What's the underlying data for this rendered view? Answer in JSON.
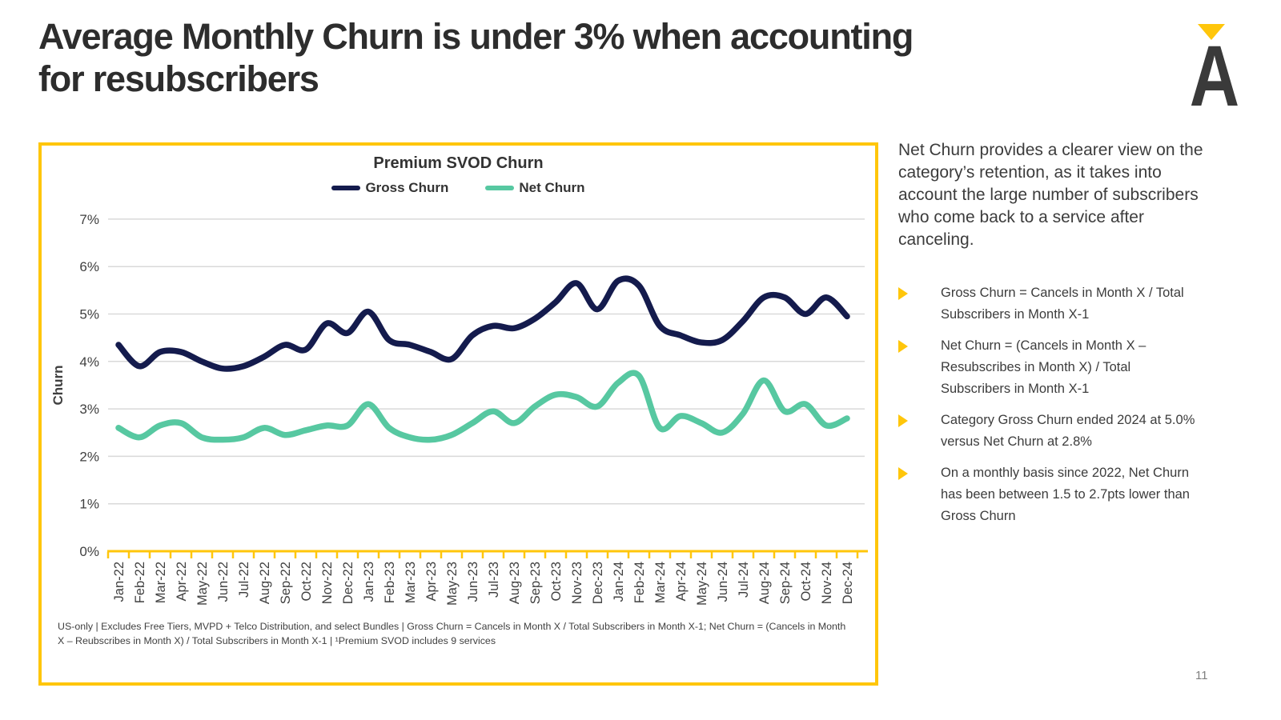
{
  "slide": {
    "title": "Average Monthly Churn is under 3% when accounting\nfor resubscribers",
    "page_number": "11",
    "logo": {
      "letter": "A",
      "triangle_icon": "yellow-down-triangle"
    }
  },
  "colors": {
    "brand_yellow": "#FFC60B",
    "gross_churn_navy": "#141B4D",
    "net_churn_teal": "#57C8A1",
    "gridline": "#D9D9D9",
    "title_text": "#2D2D2D",
    "body_text": "#3C3C3C",
    "page_number_gray": "#7F7F7F"
  },
  "chart_data": {
    "type": "line",
    "title": "Premium SVOD Churn",
    "ylabel": "Churn",
    "ylim": [
      0,
      7
    ],
    "yticks": [
      "0%",
      "1%",
      "2%",
      "3%",
      "4%",
      "5%",
      "6%",
      "7%"
    ],
    "grid": true,
    "legend_position": "top-center",
    "categories": [
      "Jan-22",
      "Feb-22",
      "Mar-22",
      "Apr-22",
      "May-22",
      "Jun-22",
      "Jul-22",
      "Aug-22",
      "Sep-22",
      "Oct-22",
      "Nov-22",
      "Dec-22",
      "Jan-23",
      "Feb-23",
      "Mar-23",
      "Apr-23",
      "May-23",
      "Jun-23",
      "Jul-23",
      "Aug-23",
      "Sep-23",
      "Oct-23",
      "Nov-23",
      "Dec-23",
      "Jan-24",
      "Feb-24",
      "Mar-24",
      "Apr-24",
      "May-24",
      "Jun-24",
      "Jul-24",
      "Aug-24",
      "Sep-24",
      "Oct-24",
      "Nov-24",
      "Dec-24"
    ],
    "series": [
      {
        "name": "Gross Churn",
        "color": "#141B4D",
        "values": [
          4.35,
          3.9,
          4.2,
          4.2,
          4.0,
          3.85,
          3.9,
          4.1,
          4.35,
          4.25,
          4.8,
          4.6,
          5.05,
          4.45,
          4.35,
          4.2,
          4.05,
          4.55,
          4.75,
          4.7,
          4.9,
          5.25,
          5.65,
          5.1,
          5.7,
          5.6,
          4.75,
          4.55,
          4.4,
          4.45,
          4.85,
          5.35,
          5.35,
          5.0,
          5.35,
          4.95
        ]
      },
      {
        "name": "Net Churn",
        "color": "#57C8A1",
        "values": [
          2.6,
          2.4,
          2.65,
          2.7,
          2.4,
          2.35,
          2.4,
          2.6,
          2.45,
          2.55,
          2.65,
          2.65,
          3.1,
          2.6,
          2.4,
          2.35,
          2.45,
          2.7,
          2.95,
          2.7,
          3.05,
          3.3,
          3.25,
          3.05,
          3.55,
          3.7,
          2.6,
          2.85,
          2.7,
          2.5,
          2.9,
          3.6,
          2.95,
          3.1,
          2.65,
          2.8
        ]
      }
    ],
    "axis_color": "#FFC60B",
    "footnote": "US-only | Excludes Free Tiers, MVPD + Telco Distribution, and select Bundles | Gross Churn = Cancels in Month X / Total Subscribers in Month X-1; Net Churn = (Cancels in Month X – Reubscribes in Month X) / Total Subscribers in Month X-1 | ¹Premium SVOD includes 9 services"
  },
  "sidebar": {
    "intro": "Net Churn provides a clearer view on the category’s retention, as it takes into account the large number of subscribers who come back to a service after canceling.",
    "bullets": [
      "Gross Churn = Cancels in Month X / Total Subscribers in Month X-1",
      "Net Churn = (Cancels in Month X – Resubscribes in Month X) / Total Subscribers in Month X-1",
      "Category Gross Churn ended 2024 at 5.0% versus Net Churn at 2.8%",
      "On a monthly basis since 2022, Net Churn has been between 1.5 to 2.7pts lower than Gross Churn"
    ]
  }
}
